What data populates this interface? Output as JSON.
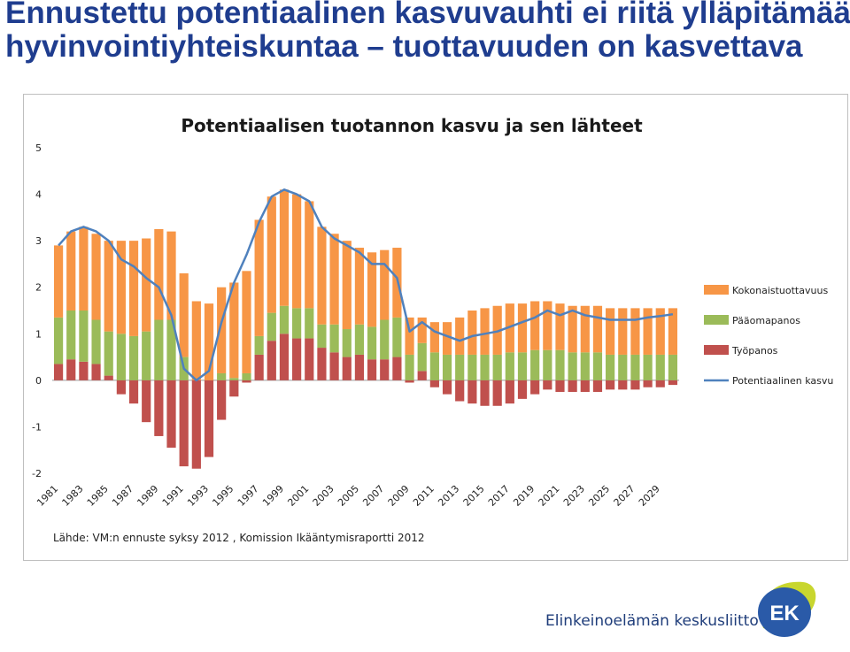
{
  "slide": {
    "title_line1": "Ennustettu potentiaalinen kasvuvauhti ei riitä ylläpitämään",
    "title_line2": "hyvinvointiyhteiskuntaa – tuottavuuden on kasvettava"
  },
  "colors": {
    "kokonaistuottavuus": "#f79646",
    "paaomapanos": "#9bbb59",
    "tyopanos": "#c0504d",
    "potentiaalinen_kasvu": "#4f81bd",
    "title": "#1f3d8f"
  },
  "chart_data": {
    "type": "bar",
    "stacked": true,
    "title": "Potentiaalisen tuotannon kasvu ja sen lähteet",
    "xlabel": "",
    "ylabel": "",
    "ylim": [
      -2,
      5
    ],
    "yticks": [
      "5",
      "4",
      "3",
      "2",
      "1",
      "0",
      "-1",
      "-2"
    ],
    "x": [
      "1981",
      "1982",
      "1983",
      "1984",
      "1985",
      "1986",
      "1987",
      "1988",
      "1989",
      "1990",
      "1991",
      "1992",
      "1993",
      "1994",
      "1995",
      "1996",
      "1997",
      "1998",
      "1999",
      "2000",
      "2001",
      "2002",
      "2003",
      "2004",
      "2005",
      "2006",
      "2007",
      "2008",
      "2009",
      "2010",
      "2011",
      "2012",
      "2013",
      "2014",
      "2015",
      "2016",
      "2017",
      "2018",
      "2019",
      "2020",
      "2021",
      "2022",
      "2023",
      "2024",
      "2025",
      "2026",
      "2027",
      "2028",
      "2029",
      "2030"
    ],
    "x_tick_labels": [
      "1981",
      "1983",
      "1985",
      "1987",
      "1989",
      "1991",
      "1993",
      "1995",
      "1997",
      "1999",
      "2001",
      "2003",
      "2005",
      "2007",
      "2009",
      "2011",
      "2013",
      "2015",
      "2017",
      "2019",
      "2021",
      "2023",
      "2025",
      "2027",
      "2029"
    ],
    "grid": false,
    "legend_position": "right",
    "series": [
      {
        "name": "Kokonaistuottavuus",
        "type": "bar",
        "values": [
          1.55,
          1.7,
          1.8,
          1.85,
          1.95,
          2.0,
          2.05,
          2.0,
          1.95,
          1.9,
          1.8,
          1.7,
          1.65,
          1.85,
          2.05,
          2.2,
          2.5,
          2.5,
          2.5,
          2.45,
          2.3,
          2.1,
          1.95,
          1.9,
          1.65,
          1.6,
          1.5,
          1.5,
          0.8,
          0.55,
          0.65,
          0.7,
          0.8,
          0.95,
          1.0,
          1.05,
          1.05,
          1.05,
          1.05,
          1.05,
          1.0,
          1.0,
          1.0,
          1.0,
          1.0,
          1.0,
          1.0,
          1.0,
          1.0,
          1.0
        ]
      },
      {
        "name": "Pääomapanos",
        "type": "bar",
        "values": [
          1.0,
          1.05,
          1.1,
          0.95,
          0.95,
          1.0,
          0.95,
          1.05,
          1.3,
          1.3,
          0.5,
          0.0,
          0.0,
          0.15,
          0.05,
          0.15,
          0.4,
          0.6,
          0.6,
          0.65,
          0.65,
          0.5,
          0.6,
          0.6,
          0.65,
          0.7,
          0.85,
          0.85,
          0.55,
          0.6,
          0.6,
          0.55,
          0.55,
          0.55,
          0.55,
          0.55,
          0.6,
          0.6,
          0.65,
          0.65,
          0.65,
          0.6,
          0.6,
          0.6,
          0.55,
          0.55,
          0.55,
          0.55,
          0.55,
          0.55
        ]
      },
      {
        "name": "Työpanos",
        "type": "bar",
        "values": [
          0.35,
          0.45,
          0.4,
          0.35,
          0.1,
          -0.3,
          -0.5,
          -0.9,
          -1.2,
          -1.45,
          -1.85,
          -1.9,
          -1.65,
          -0.85,
          -0.35,
          -0.05,
          0.55,
          0.85,
          1.0,
          0.9,
          0.9,
          0.7,
          0.6,
          0.5,
          0.55,
          0.45,
          0.45,
          0.5,
          -0.05,
          0.2,
          -0.15,
          -0.3,
          -0.45,
          -0.5,
          -0.55,
          -0.55,
          -0.5,
          -0.4,
          -0.3,
          -0.2,
          -0.25,
          -0.25,
          -0.25,
          -0.25,
          -0.2,
          -0.2,
          -0.2,
          -0.15,
          -0.15,
          -0.1
        ]
      },
      {
        "name": "Potentiaalinen kasvu",
        "type": "line",
        "values": [
          2.9,
          3.2,
          3.3,
          3.2,
          3.0,
          2.6,
          2.45,
          2.2,
          2.0,
          1.4,
          0.25,
          0.0,
          0.2,
          1.25,
          2.1,
          2.7,
          3.4,
          3.95,
          4.1,
          4.0,
          3.85,
          3.3,
          3.05,
          2.9,
          2.75,
          2.5,
          2.5,
          2.2,
          1.05,
          1.25,
          1.05,
          0.95,
          0.85,
          0.95,
          1.0,
          1.05,
          1.15,
          1.25,
          1.35,
          1.5,
          1.4,
          1.5,
          1.4,
          1.35,
          1.3,
          1.3,
          1.3,
          1.35,
          1.38,
          1.42
        ]
      }
    ],
    "source": "Lähde: VM:n ennuste syksy 2012 , Komission Ikääntymisraportti 2012"
  },
  "logo": {
    "text": "Elinkeinoelämän keskusliitto",
    "mark_text": "EK"
  }
}
